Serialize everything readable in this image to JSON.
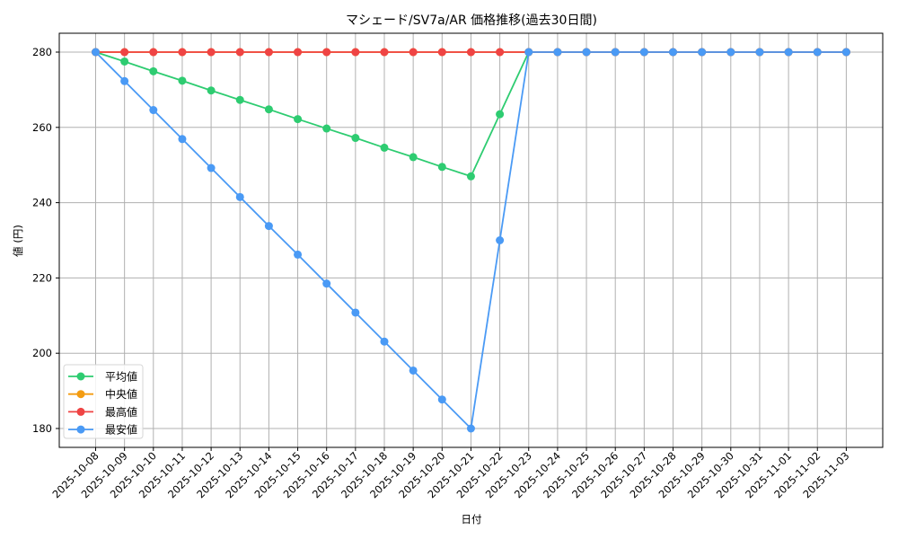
{
  "chart_data": {
    "type": "line",
    "title": "マシェード/SV7a/AR 価格推移(過去30日間)",
    "xlabel": "日付",
    "ylabel": "値 (円)",
    "ylim": [
      175,
      285
    ],
    "yticks": [
      180,
      200,
      220,
      240,
      260,
      280
    ],
    "grid": true,
    "legend_position": "lower left",
    "x": [
      "2025-10-08",
      "2025-10-09",
      "2025-10-10",
      "2025-10-11",
      "2025-10-12",
      "2025-10-13",
      "2025-10-14",
      "2025-10-15",
      "2025-10-16",
      "2025-10-17",
      "2025-10-18",
      "2025-10-19",
      "2025-10-20",
      "2025-10-21",
      "2025-10-22",
      "2025-10-23",
      "2025-10-24",
      "2025-10-25",
      "2025-10-26",
      "2025-10-27",
      "2025-10-28",
      "2025-10-29",
      "2025-10-30",
      "2025-10-31",
      "2025-11-01",
      "2025-11-02",
      "2025-11-03"
    ],
    "series": [
      {
        "name": "平均値",
        "color": "#2ecc71",
        "values": [
          280,
          277.5,
          274.9,
          272.4,
          269.8,
          267.3,
          264.8,
          262.2,
          259.7,
          257.2,
          254.6,
          252.1,
          249.5,
          247,
          263.5,
          280,
          280,
          280,
          280,
          280,
          280,
          280,
          280,
          280,
          280,
          280,
          280
        ]
      },
      {
        "name": "中央値",
        "color": "#f39c12",
        "values": [
          280,
          280,
          280,
          280,
          280,
          280,
          280,
          280,
          280,
          280,
          280,
          280,
          280,
          280,
          280,
          280,
          280,
          280,
          280,
          280,
          280,
          280,
          280,
          280,
          280,
          280,
          280
        ]
      },
      {
        "name": "最高値",
        "color": "#ef4444",
        "values": [
          280,
          280,
          280,
          280,
          280,
          280,
          280,
          280,
          280,
          280,
          280,
          280,
          280,
          280,
          280,
          280,
          280,
          280,
          280,
          280,
          280,
          280,
          280,
          280,
          280,
          280,
          280
        ]
      },
      {
        "name": "最安値",
        "color": "#4a9af5",
        "values": [
          280,
          272.3,
          264.6,
          256.9,
          249.2,
          241.5,
          233.8,
          226.2,
          218.5,
          210.8,
          203.1,
          195.4,
          187.7,
          180,
          230,
          280,
          280,
          280,
          280,
          280,
          280,
          280,
          280,
          280,
          280,
          280,
          280
        ]
      }
    ]
  }
}
